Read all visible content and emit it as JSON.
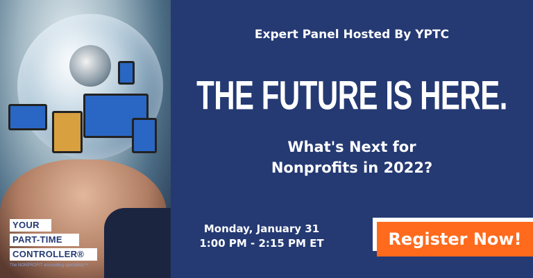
{
  "brand": {
    "logo_lines": [
      "YOUR",
      "PART-TIME",
      "CONTROLLER®"
    ],
    "tagline": "The NONPROFIT accounting specialists™"
  },
  "event": {
    "kicker": "Expert Panel Hosted By YPTC",
    "title": "THE FUTURE IS HERE.",
    "subtitle_lines": [
      "What's Next for",
      "Nonprofits in 2022?"
    ],
    "date": "Monday, January 31",
    "time": "1:00 PM - 2:15 PM ET"
  },
  "cta": {
    "label": "Register Now!"
  },
  "colors": {
    "background": "#253a73",
    "button": "#ff6a1c",
    "text": "#ffffff"
  }
}
